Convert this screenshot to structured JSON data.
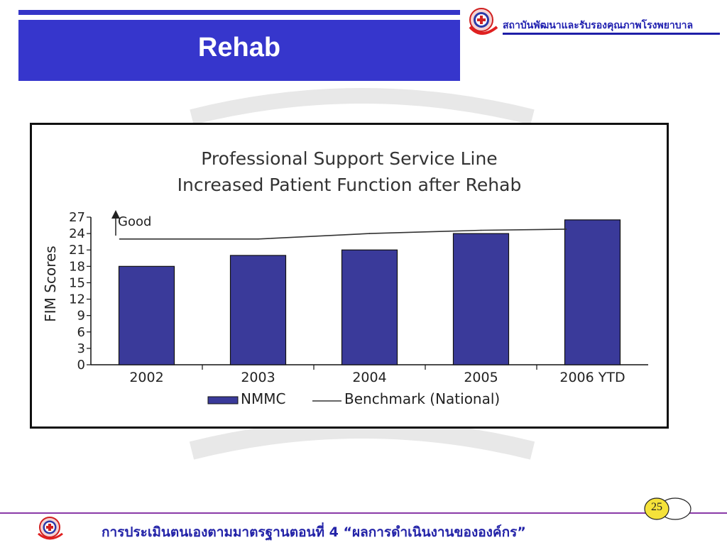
{
  "slide": {
    "title": "Rehab",
    "org_name": "สถาบันพัฒนาและรับรองคุณภาพโรงพยาบาล",
    "footer_text": "การประเมินตนเองตามมาตรฐานตอนที่ 4 “ผลการดำเนินงานขององค์กร”",
    "page_number": "25",
    "colors": {
      "banner": "#3636cc",
      "bar": "#3a3a9a",
      "footer_text": "#2323a8",
      "divider": "#8a3aa8",
      "logo_red": "#e02020"
    },
    "icons": [
      "hospital-cross-logo-icon",
      "up-arrow-icon"
    ]
  },
  "chart_data": {
    "type": "bar",
    "title_lines": [
      "Professional Support Service Line",
      "Increased Patient Function after Rehab"
    ],
    "categories": [
      "2002",
      "2003",
      "2004",
      "2005",
      "2006 YTD"
    ],
    "series": [
      {
        "name": "NMMC",
        "type": "bar",
        "values": [
          18,
          20,
          21,
          24,
          26.5
        ]
      },
      {
        "name": "Benchmark (National)",
        "type": "line",
        "values": [
          23,
          23,
          24,
          24.6,
          24.8
        ]
      }
    ],
    "ylabel": "FIM Scores",
    "xlabel": "",
    "ylim": [
      0,
      27
    ],
    "yticks": [
      "0",
      "3",
      "6",
      "9",
      "12",
      "15",
      "18",
      "21",
      "24",
      "27"
    ],
    "annotation": "Good",
    "legend": [
      "NMMC",
      "Benchmark (National)"
    ],
    "legend_position": "bottom-center",
    "grid": false
  }
}
